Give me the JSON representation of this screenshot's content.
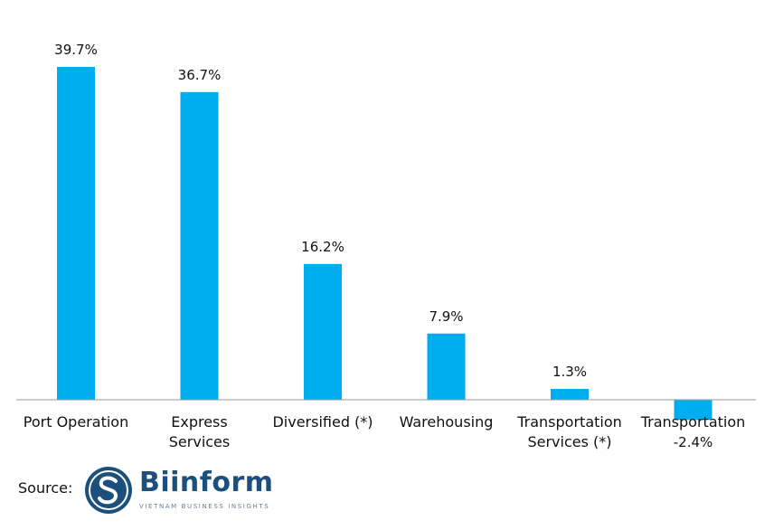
{
  "chart_data": {
    "type": "bar",
    "categories": [
      "Port Operation",
      "Express Services",
      "Diversified (*)",
      "Warehousing",
      "Transportation Services (*)",
      "Transportation"
    ],
    "category_lines": [
      [
        "Port Operation"
      ],
      [
        "Express",
        "Services"
      ],
      [
        "Diversified (*)"
      ],
      [
        "Warehousing"
      ],
      [
        "Transportation",
        "Services (*)"
      ],
      [
        "Transportation"
      ]
    ],
    "values": [
      39.7,
      36.7,
      16.2,
      7.9,
      1.3,
      -2.4
    ],
    "value_labels": [
      "39.7%",
      "36.7%",
      "16.2%",
      "7.9%",
      "1.3%",
      "-2.4%"
    ],
    "title": "",
    "xlabel": "",
    "ylabel": "",
    "ylim": [
      -2.4,
      39.7
    ],
    "grid": false,
    "legend": "none",
    "bar_color": "#00aeef"
  },
  "footer": {
    "source_label": "Source:",
    "logo_name": "Biinform",
    "logo_tagline": "VIETNAM BUSINESS INSIGHTS",
    "logo_color": "#1d4f7c"
  }
}
